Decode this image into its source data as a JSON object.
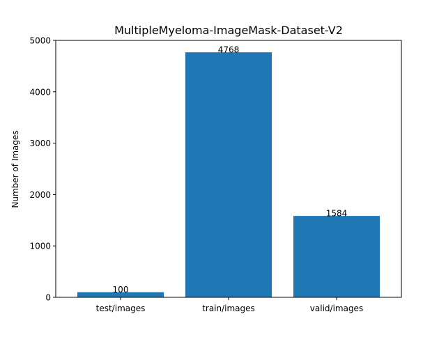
{
  "chart_data": {
    "type": "bar",
    "title": "MultipleMyeloma-ImageMask-Dataset-V2",
    "xlabel": "",
    "ylabel": "Number of Images",
    "categories": [
      "test/images",
      "train/images",
      "valid/images"
    ],
    "values": [
      100,
      4768,
      1584
    ],
    "value_labels": [
      "100",
      "4768",
      "1584"
    ],
    "ylim": [
      0,
      5000
    ],
    "yticks": [
      0,
      1000,
      2000,
      3000,
      4000,
      5000
    ],
    "ytick_labels": [
      "0",
      "1000",
      "2000",
      "3000",
      "4000",
      "5000"
    ],
    "bar_color": "#1f77b4",
    "grid": false,
    "legend": "none"
  }
}
